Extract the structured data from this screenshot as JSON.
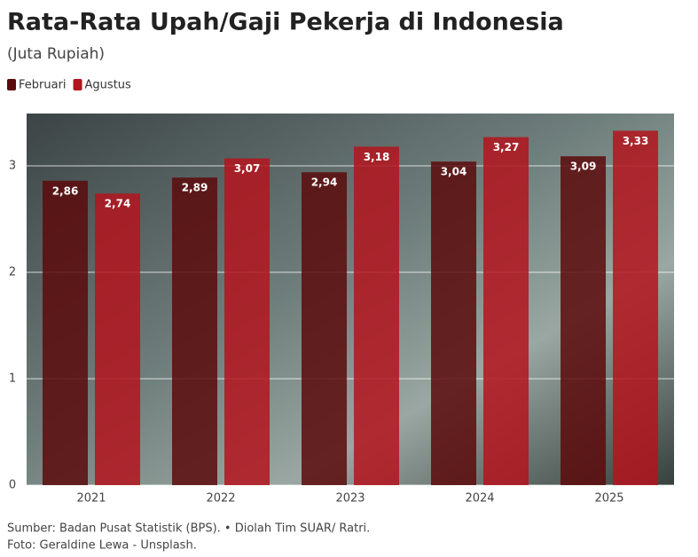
{
  "chart_data": {
    "type": "bar",
    "title": "Rata-Rata Upah/Gaji Pekerja di Indonesia",
    "subtitle": "(Juta Rupiah)",
    "categories": [
      "2021",
      "2022",
      "2023",
      "2024",
      "2025"
    ],
    "series": [
      {
        "name": "Februari",
        "color": "#5c0a0c",
        "values": [
          2.86,
          2.89,
          2.94,
          3.04,
          3.09
        ],
        "value_labels": [
          "2,86",
          "2,89",
          "2,94",
          "3,04",
          "3,09"
        ]
      },
      {
        "name": "Agustus",
        "color": "#b3141d",
        "values": [
          2.74,
          3.07,
          3.18,
          3.27,
          3.33
        ],
        "value_labels": [
          "2,74",
          "3,07",
          "3,18",
          "3,27",
          "3,33"
        ]
      }
    ],
    "ylim": [
      0,
      3.5
    ],
    "yticks": [
      0,
      1,
      2,
      3
    ],
    "grid": true,
    "source": "Sumber: Badan Pusat Statistik (BPS). • Diolah Tim SUAR/ Ratri.",
    "photo_credit": "Foto: Geraldine Lewa - Unsplash."
  }
}
